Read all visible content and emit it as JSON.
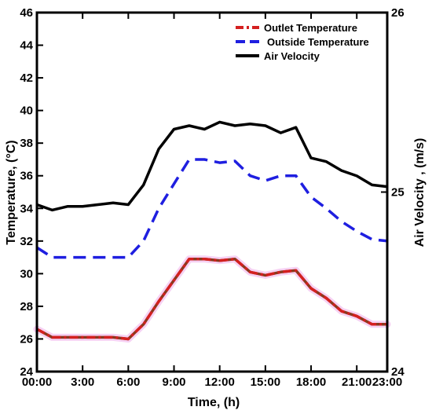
{
  "chart_data": {
    "type": "line",
    "title": "",
    "xlabel": "Time, (h)",
    "ylabel_left": "Temperature, (°C)",
    "ylabel_right": "Air Velocity , (m/s)",
    "x_ticks": [
      "00:00",
      "3:00",
      "6:00",
      "9:00",
      "12:00",
      "15:00",
      "18:00",
      "21:00",
      "23:00"
    ],
    "x_range_hours": [
      0,
      23
    ],
    "y_left_range": [
      24,
      46
    ],
    "y_left_ticks": [
      "24",
      "26",
      "28",
      "30",
      "32",
      "34",
      "36",
      "38",
      "40",
      "42",
      "44",
      "46"
    ],
    "y_right_range": [
      24,
      26
    ],
    "y_right_ticks": [
      "24",
      "25",
      "26"
    ],
    "grid": false,
    "legend_position": "top-right",
    "series": [
      {
        "name": "Outlet Temperature",
        "axis": "left",
        "color": "#d42020",
        "style": "dash-dot",
        "x": [
          0,
          1,
          2,
          3,
          4,
          5,
          6,
          7,
          8,
          9,
          10,
          11,
          12,
          13,
          14,
          15,
          16,
          17,
          18,
          19,
          20,
          21,
          22,
          23
        ],
        "values": [
          26.6,
          26.1,
          26.1,
          26.1,
          26.1,
          26.1,
          26.0,
          26.9,
          28.3,
          29.6,
          30.9,
          30.9,
          30.8,
          30.9,
          30.1,
          29.9,
          30.1,
          30.2,
          29.1,
          28.5,
          27.7,
          27.4,
          26.9,
          26.9
        ]
      },
      {
        "name": "Outside Temperature",
        "axis": "left",
        "color": "#1f1fe0",
        "style": "dash",
        "x": [
          0,
          1,
          2,
          3,
          4,
          5,
          6,
          7,
          8,
          9,
          10,
          11,
          12,
          13,
          14,
          15,
          16,
          17,
          18,
          19,
          20,
          21,
          22,
          23
        ],
        "values": [
          31.6,
          31.0,
          31.0,
          31.0,
          31.0,
          31.0,
          31.0,
          32.0,
          34.0,
          35.5,
          37.0,
          37.0,
          36.8,
          36.9,
          36.0,
          35.7,
          36.0,
          36.0,
          34.7,
          34.0,
          33.2,
          32.6,
          32.1,
          32.0
        ]
      },
      {
        "name": "Air Velocity",
        "axis": "right",
        "color": "#000000",
        "style": "solid",
        "x": [
          0,
          1,
          2,
          3,
          4,
          5,
          6,
          7,
          8,
          9,
          10,
          11,
          12,
          13,
          14,
          15,
          16,
          17,
          18,
          19,
          20,
          21,
          22,
          23
        ],
        "values": [
          24.93,
          24.9,
          24.92,
          24.92,
          24.93,
          24.94,
          24.93,
          25.04,
          25.24,
          25.35,
          25.37,
          25.35,
          25.39,
          25.37,
          25.38,
          25.37,
          25.33,
          25.36,
          25.19,
          25.17,
          25.12,
          25.09,
          25.04,
          25.03
        ]
      }
    ]
  }
}
